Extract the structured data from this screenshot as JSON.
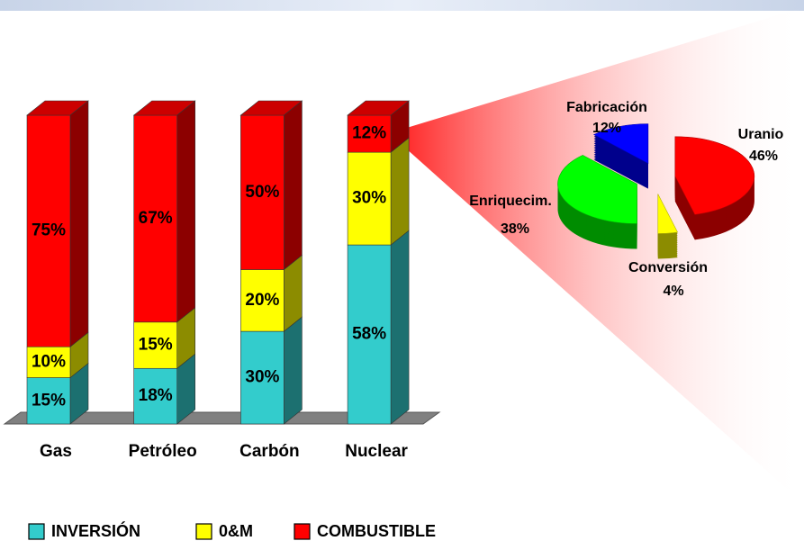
{
  "chart_data": [
    {
      "type": "bar",
      "stacked": true,
      "categories": [
        "Gas",
        "Petróleo",
        "Carbón",
        "Nuclear"
      ],
      "series": [
        {
          "name": "INVERSIÓN",
          "color": "#33cccc",
          "values": [
            15,
            18,
            30,
            58
          ],
          "value_labels": [
            "15%",
            "18%",
            "30%",
            "58%"
          ]
        },
        {
          "name": "0&M",
          "color": "#ffff00",
          "values": [
            10,
            15,
            20,
            30
          ],
          "value_labels": [
            "10%",
            "15%",
            "20%",
            "30%"
          ]
        },
        {
          "name": "COMBUSTIBLE",
          "color": "#ff0000",
          "values": [
            75,
            67,
            50,
            12
          ],
          "value_labels": [
            "75%",
            "67%",
            "50%",
            "12%"
          ]
        }
      ],
      "legend": "bottom"
    },
    {
      "type": "pie",
      "categories": [
        "Uranio",
        "Conversión",
        "Enriquecim.",
        "Fabricación"
      ],
      "values": [
        46,
        4,
        38,
        12
      ],
      "value_labels": [
        "46%",
        "4%",
        "38%",
        "12%"
      ],
      "colors": [
        "#ff0000",
        "#ffff00",
        "#00ff00",
        "#0000ff"
      ]
    }
  ]
}
